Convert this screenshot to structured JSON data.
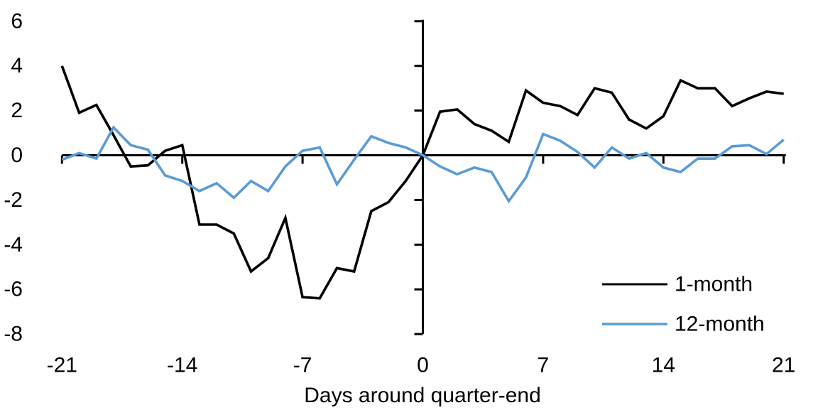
{
  "chart_data": {
    "type": "line",
    "title": "",
    "xlabel": "Days around quarter-end",
    "ylabel": "",
    "xlim": [
      -21,
      21
    ],
    "ylim": [
      -8,
      6
    ],
    "x_ticks": [
      -21,
      -14,
      -7,
      0,
      7,
      14,
      21
    ],
    "y_ticks": [
      6,
      4,
      2,
      0,
      -2,
      -4,
      -6,
      -8
    ],
    "grid": false,
    "legend_position": "inside-lower-right",
    "axis_color": "#000000",
    "x": [
      -21,
      -20,
      -19,
      -18,
      -17,
      -16,
      -15,
      -14,
      -13,
      -12,
      -11,
      -10,
      -9,
      -8,
      -7,
      -6,
      -5,
      -4,
      -3,
      -2,
      -1,
      0,
      1,
      2,
      3,
      4,
      5,
      6,
      7,
      8,
      9,
      10,
      11,
      12,
      13,
      14,
      15,
      16,
      17,
      18,
      19,
      20,
      21
    ],
    "series": [
      {
        "name": "1-month",
        "color": "#000000",
        "values": [
          4.0,
          1.9,
          2.25,
          0.9,
          -0.5,
          -0.45,
          0.2,
          0.45,
          -3.1,
          -3.1,
          -3.5,
          -5.2,
          -4.6,
          -2.8,
          -6.35,
          -6.4,
          -5.05,
          -5.2,
          -2.5,
          -2.1,
          -1.15,
          0.0,
          1.95,
          2.05,
          1.4,
          1.1,
          0.6,
          2.9,
          2.35,
          2.2,
          1.8,
          3.0,
          2.8,
          1.6,
          1.2,
          1.75,
          3.35,
          3.0,
          3.0,
          2.2,
          2.55,
          2.85,
          2.75
        ]
      },
      {
        "name": "12-month",
        "color": "#5B9BD5",
        "values": [
          -0.2,
          0.1,
          -0.15,
          1.25,
          0.45,
          0.25,
          -0.9,
          -1.15,
          -1.6,
          -1.25,
          -1.9,
          -1.15,
          -1.6,
          -0.5,
          0.2,
          0.35,
          -1.3,
          -0.2,
          0.85,
          0.55,
          0.35,
          0.0,
          -0.5,
          -0.85,
          -0.55,
          -0.75,
          -2.05,
          -1.0,
          0.95,
          0.65,
          0.15,
          -0.55,
          0.35,
          -0.15,
          0.1,
          -0.55,
          -0.75,
          -0.15,
          -0.15,
          0.4,
          0.45,
          0.05,
          0.7
        ]
      }
    ]
  }
}
